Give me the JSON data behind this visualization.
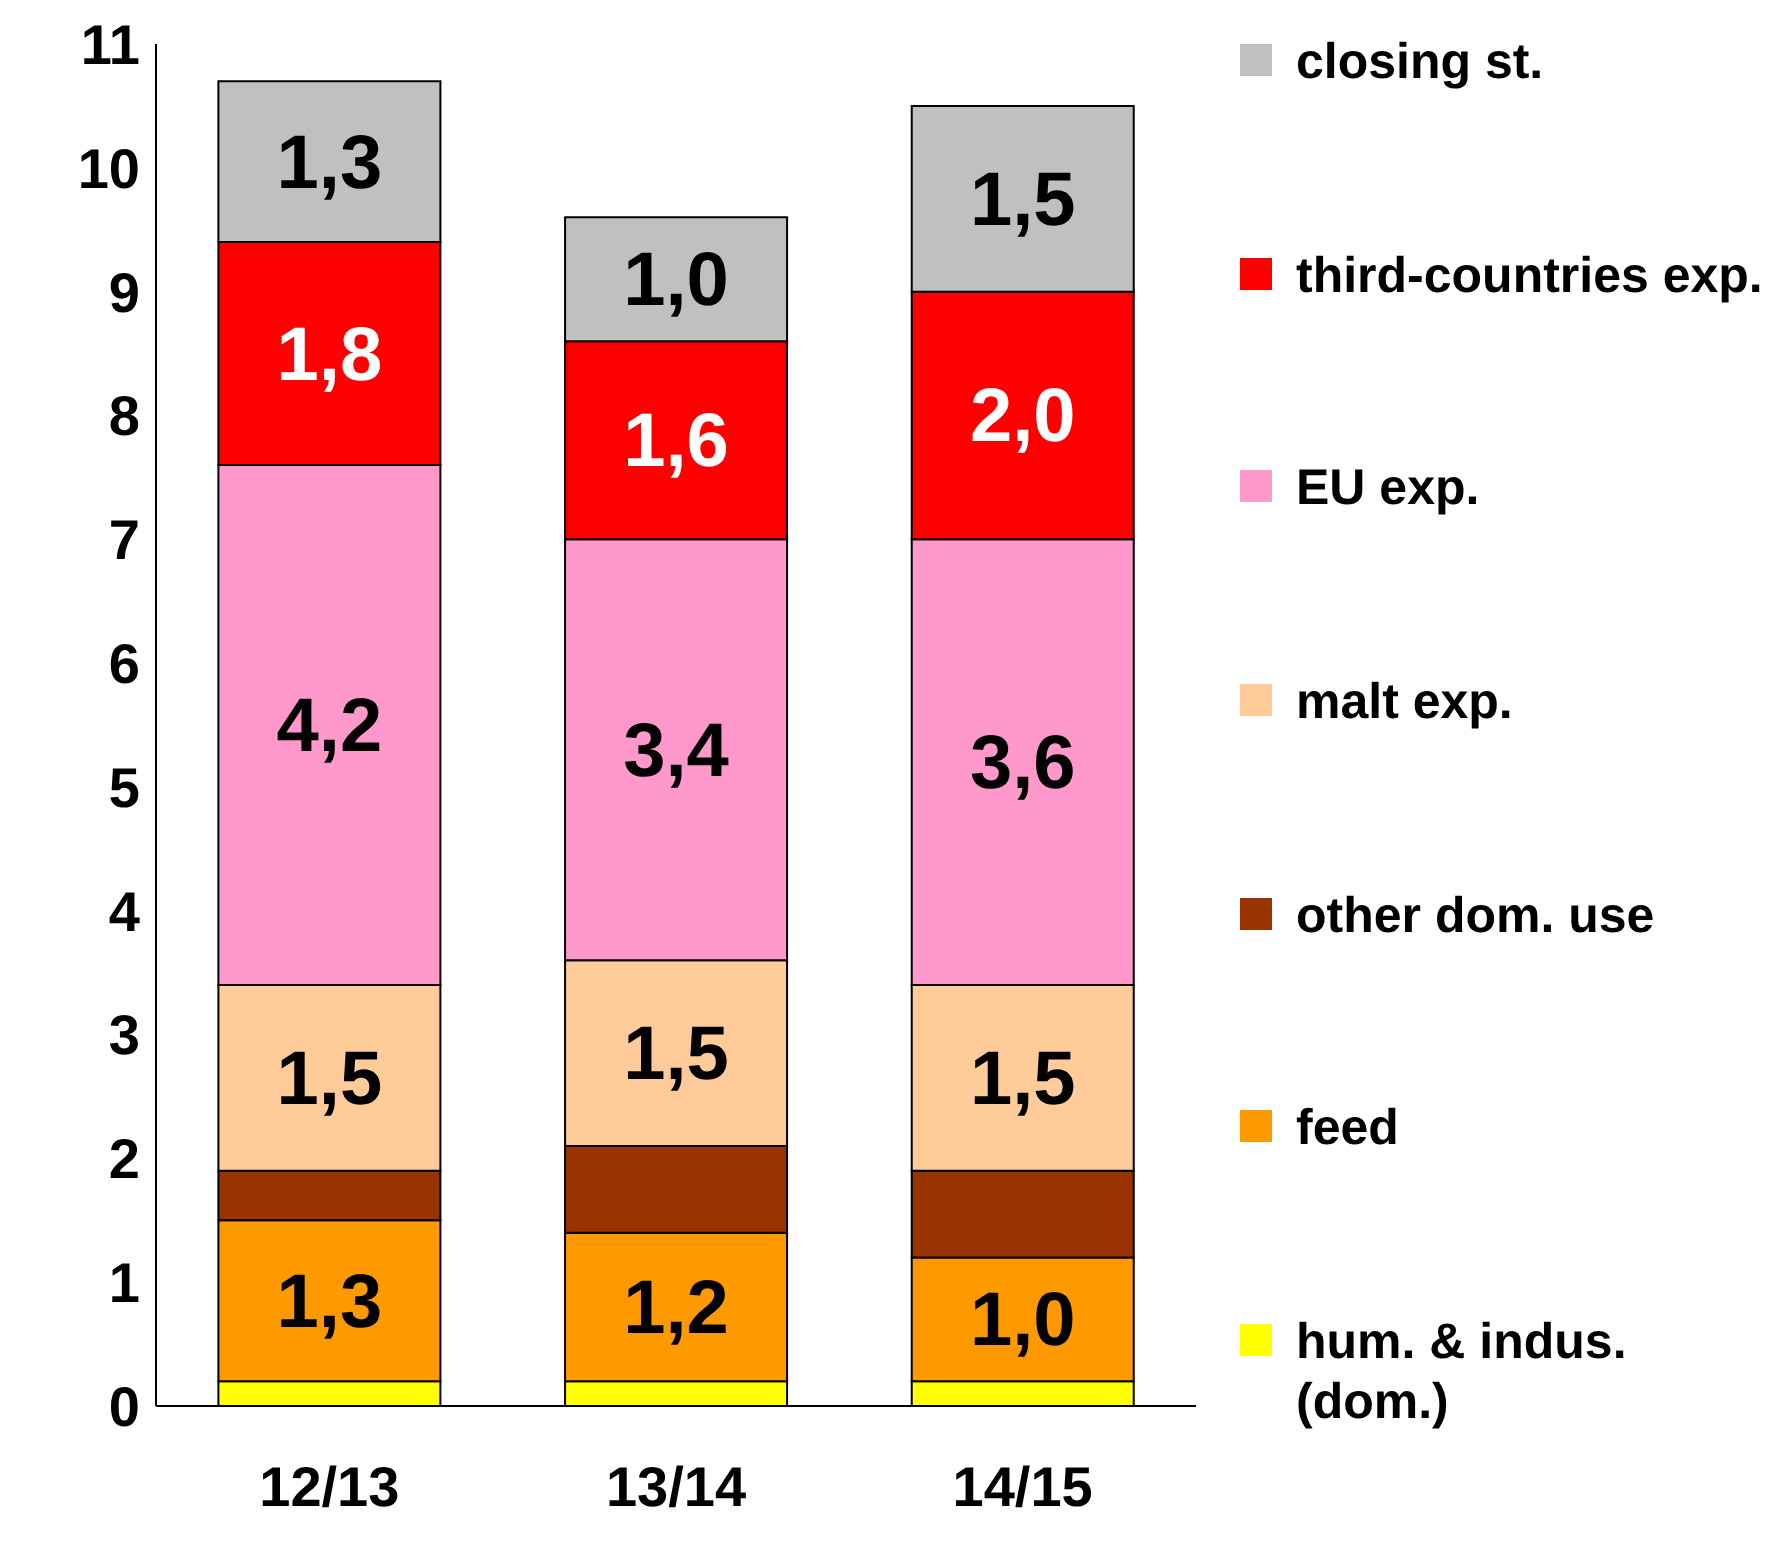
{
  "chart_data": {
    "type": "bar",
    "stacked": true,
    "categories": [
      "12/13",
      "13/14",
      "14/15"
    ],
    "series": [
      {
        "name": "hum. & indus. (dom.)",
        "color": "#ffff00",
        "values": [
          0.2,
          0.2,
          0.2
        ],
        "value_labels": [
          null,
          null,
          null
        ]
      },
      {
        "name": "feed",
        "color": "#ff9900",
        "values": [
          1.3,
          1.2,
          1.0
        ],
        "value_labels": [
          "1,3",
          "1,2",
          "1,0"
        ]
      },
      {
        "name": "other dom. use",
        "color": "#993300",
        "values": [
          0.4,
          0.7,
          0.7
        ],
        "value_labels": [
          null,
          null,
          null
        ]
      },
      {
        "name": "malt exp.",
        "color": "#ffcc99",
        "values": [
          1.5,
          1.5,
          1.5
        ],
        "value_labels": [
          "1,5",
          "1,5",
          "1,5"
        ]
      },
      {
        "name": "EU exp.",
        "color": "#ff99cc",
        "values": [
          4.2,
          3.4,
          3.6
        ],
        "value_labels": [
          "4,2",
          "3,4",
          "3,6"
        ]
      },
      {
        "name": "third-countries exp.",
        "color": "#ff0000",
        "values": [
          1.8,
          1.6,
          2.0
        ],
        "value_labels": [
          "1,8",
          "1,6",
          "2,0"
        ]
      },
      {
        "name": "closing st.",
        "color": "#c0c0c0",
        "values": [
          1.3,
          1.0,
          1.5
        ],
        "value_labels": [
          "1,3",
          "1,0",
          "1,5"
        ]
      }
    ],
    "ylim": [
      0,
      11
    ],
    "yticks": [
      0,
      1,
      2,
      3,
      4,
      5,
      6,
      7,
      8,
      9,
      10,
      11
    ],
    "grid": false,
    "legend": "right"
  }
}
